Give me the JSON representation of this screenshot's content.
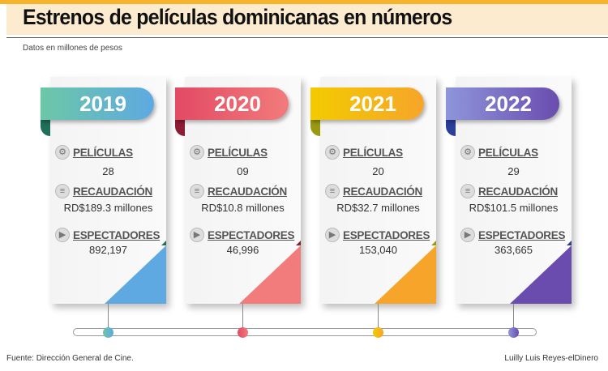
{
  "header": {
    "title": "Estrenos de películas dominicanas en números",
    "subtitle": "Datos en millones de pesos"
  },
  "labels": {
    "films": "PELÍCULAS",
    "revenue": "RECAUDACIÓN",
    "viewers": "ESPECTADORES"
  },
  "years": [
    {
      "year": "2019",
      "films": "28",
      "revenue": "RD$189.3 millones",
      "viewers": "892,197",
      "colors": [
        "#6cc7a6",
        "#5ea9e2",
        "#1f6f5a"
      ]
    },
    {
      "year": "2020",
      "films": "09",
      "revenue": "RD$10.8 millones",
      "viewers": "46,996",
      "colors": [
        "#e24a64",
        "#f27b7c",
        "#8e1c33"
      ]
    },
    {
      "year": "2021",
      "films": "20",
      "revenue": "RD$32.7 millones",
      "viewers": "153,040",
      "colors": [
        "#f3cb00",
        "#f6a52a",
        "#9a9a10"
      ]
    },
    {
      "year": "2022",
      "films": "29",
      "revenue": "RD$101.5 millones",
      "viewers": "363,665",
      "colors": [
        "#8e96da",
        "#6a4caf",
        "#2b3e9a"
      ]
    }
  ],
  "footer": {
    "source": "Fuente: Dirección General de Cine.",
    "credit": "Luilly Luis Reyes-elDinero"
  }
}
